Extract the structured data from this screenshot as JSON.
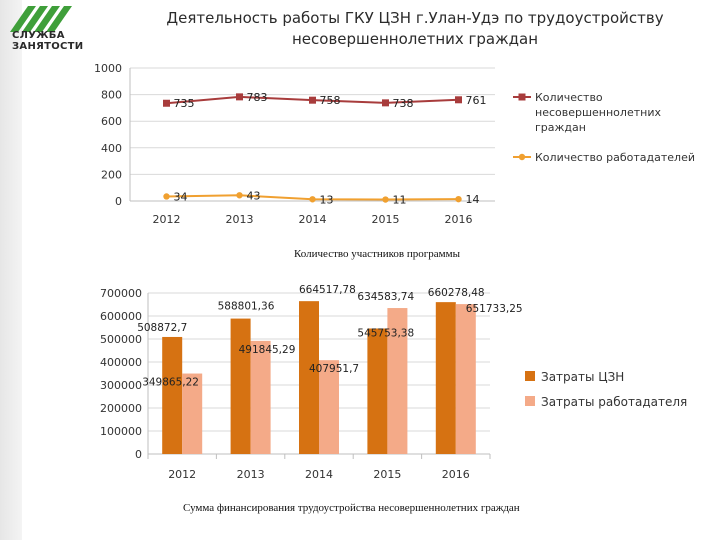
{
  "header": {
    "logo_line1": "СЛУЖБА",
    "logo_line2": "ЗАНЯТОСТИ",
    "title_line1": "Деятельность работы ГКУ ЦЗН г.Улан-Удэ по трудоустройству",
    "title_line2": "несовершеннолетних граждан"
  },
  "colors": {
    "series_red": "#a83c3c",
    "series_orange": "#f0a030",
    "bar_dark": "#d67212",
    "bar_light": "#f4aa88",
    "logo_green": "#3f9f3a"
  },
  "chart_data": [
    {
      "type": "line",
      "categories": [
        "2012",
        "2013",
        "2014",
        "2015",
        "2016"
      ],
      "ylim": [
        0,
        1000
      ],
      "yticks": [
        "0",
        "200",
        "400",
        "600",
        "800",
        "1000"
      ],
      "grid": true,
      "legend_position": "right",
      "caption": "Количество участников программы",
      "series": [
        {
          "name": "Количество несовершеннолетних граждан",
          "values": [
            735,
            783,
            758,
            738,
            761
          ],
          "labels": [
            "735",
            "783",
            "758",
            "738",
            "761"
          ]
        },
        {
          "name": "Количество работадателей",
          "values": [
            34,
            43,
            13,
            11,
            14
          ],
          "labels": [
            "34",
            "43",
            "13",
            "11",
            "14"
          ]
        }
      ]
    },
    {
      "type": "bar",
      "categories": [
        "2012",
        "2013",
        "2014",
        "2015",
        "2016"
      ],
      "ylim": [
        0,
        700000
      ],
      "yticks": [
        "0",
        "100000",
        "200000",
        "300000",
        "400000",
        "500000",
        "600000",
        "700000"
      ],
      "grid": true,
      "legend_position": "right",
      "caption": "Сумма финансирования трудоустройства несовершеннолетних граждан",
      "series": [
        {
          "name": "Затраты ЦЗН",
          "values": [
            508872.7,
            588801.36,
            664517.78,
            545753.38,
            660278.48
          ],
          "labels": [
            "508872,7",
            "588801,36",
            "664517,78",
            "545753,38",
            "660278,48"
          ]
        },
        {
          "name": "Затраты работадателя",
          "values": [
            349865.22,
            491845.29,
            407951.7,
            634583.74,
            651733.25
          ],
          "labels": [
            "349865,22",
            "491845,29",
            "407951,7",
            "634583,74",
            "651733,25"
          ]
        }
      ]
    }
  ]
}
